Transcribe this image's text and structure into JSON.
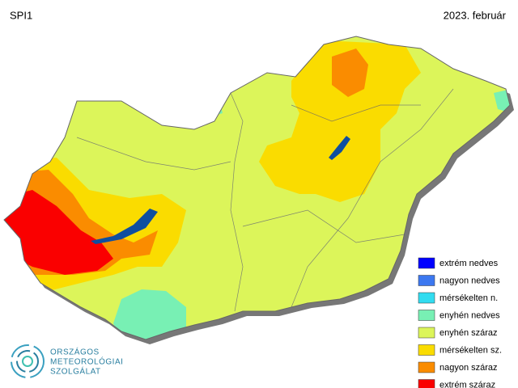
{
  "header": {
    "title": "SPI1",
    "date": "2023. február"
  },
  "legend": {
    "items": [
      {
        "label": "extrém nedves",
        "color": "#0000ff"
      },
      {
        "label": "nagyon nedves",
        "color": "#3c78f0"
      },
      {
        "label": "mérsékelten n.",
        "color": "#32dcf0"
      },
      {
        "label": "enyhén nedves",
        "color": "#78f0b4"
      },
      {
        "label": "enyhén száraz",
        "color": "#dcf55a"
      },
      {
        "label": "mérsékelten sz.",
        "color": "#fadc00"
      },
      {
        "label": "nagyon száraz",
        "color": "#fa8c00"
      },
      {
        "label": "extrém száraz",
        "color": "#fa0000"
      }
    ]
  },
  "logo": {
    "lines": [
      "ORSZÁGOS",
      "METEOROLÓGIAI",
      "SZOLGÁLAT"
    ]
  }
}
